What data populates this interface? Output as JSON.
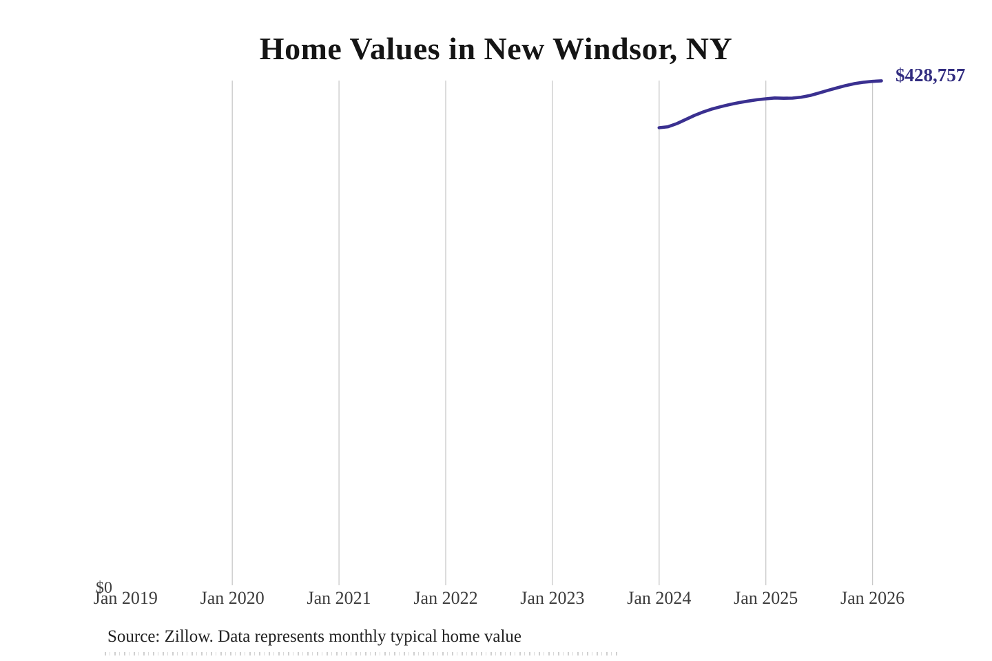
{
  "title": "Home Values in New Windsor, NY",
  "last_value_label": "$428,757",
  "y_zero_label": "$0",
  "source_note": "Source: Zillow. Data represents monthly typical home value",
  "colors": {
    "line": "#3a3090",
    "last_value_label": "#322d80",
    "gridline": "#c9c9c9",
    "tick_text": "#3d3d3d",
    "title_text": "#151515",
    "source_text": "#222222",
    "background": "#ffffff"
  },
  "chart_data": {
    "type": "line",
    "title": "Home Values in New Windsor, NY",
    "xlabel": "",
    "ylabel": "",
    "legend": false,
    "grid": "vertical-only",
    "x_ticks": [
      "Jan 2019",
      "Jan 2020",
      "Jan 2021",
      "Jan 2022",
      "Jan 2023",
      "Jan 2024",
      "Jan 2025",
      "Jan 2026"
    ],
    "x_tick_years": [
      2019,
      2020,
      2021,
      2022,
      2023,
      2024,
      2025,
      2026
    ],
    "y_axis": {
      "min": 0,
      "min_label": "$0",
      "max": 428757
    },
    "annotation_last_value": "$428,757",
    "series": [
      {
        "name": "Monthly typical home value",
        "color": "#3a3090",
        "x": [
          "2024-01",
          "2024-02",
          "2024-03",
          "2024-04",
          "2024-05",
          "2024-06",
          "2024-07",
          "2024-08",
          "2024-09",
          "2024-10",
          "2024-11",
          "2024-12",
          "2025-01",
          "2025-02",
          "2025-03",
          "2025-04",
          "2025-05",
          "2025-06",
          "2025-07",
          "2025-08",
          "2025-09",
          "2025-10",
          "2025-11",
          "2025-12",
          "2026-01",
          "2026-02"
        ],
        "values": [
          389000,
          389800,
          392500,
          396000,
          399500,
          402500,
          405000,
          407000,
          408800,
          410300,
          411600,
          412700,
          413500,
          414200,
          414000,
          414100,
          414900,
          416400,
          418500,
          420700,
          422800,
          424800,
          426400,
          427600,
          428300,
          428757
        ]
      }
    ]
  }
}
